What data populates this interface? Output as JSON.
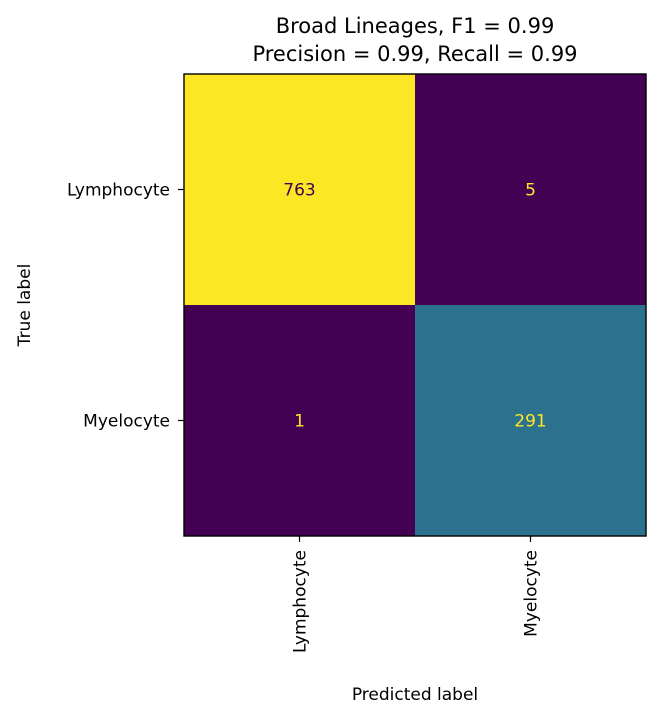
{
  "chart_data": {
    "type": "heatmap",
    "title": "Broad Lineages, F1 = 0.99",
    "subtitle": "Precision = 0.99, Recall = 0.99",
    "xlabel": "Predicted label",
    "ylabel": "True label",
    "x_categories": [
      "Lymphocyte",
      "Myelocyte"
    ],
    "y_categories": [
      "Lymphocyte",
      "Myelocyte"
    ],
    "values": [
      [
        763,
        5
      ],
      [
        1,
        291
      ]
    ],
    "colormap": "viridis",
    "vmin": 1,
    "vmax": 763,
    "grid": false,
    "colorbar": false
  },
  "colors": {
    "low": "#440154",
    "high": "#fde725",
    "mid": "#2c728e",
    "text_on_dark": "#fde725",
    "text_on_light": "#440154"
  }
}
